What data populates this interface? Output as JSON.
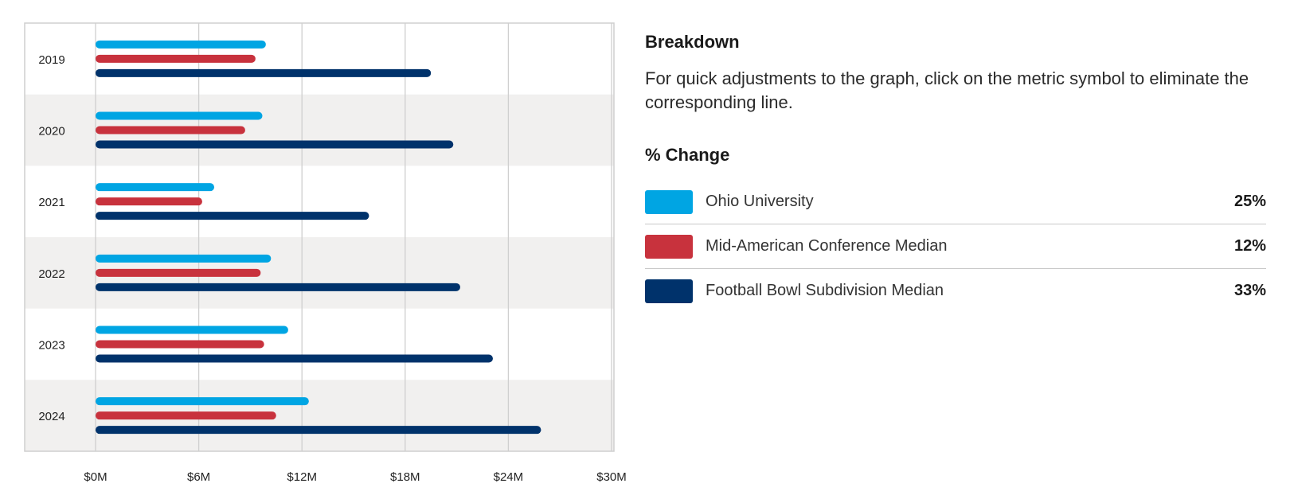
{
  "chart_data": {
    "type": "bar",
    "orientation": "horizontal",
    "categories": [
      "2019",
      "2020",
      "2021",
      "2022",
      "2023",
      "2024"
    ],
    "series": [
      {
        "name": "Ohio University",
        "color": "#00a5e3",
        "values": [
          9.9,
          9.7,
          6.9,
          10.2,
          11.2,
          12.4
        ]
      },
      {
        "name": "Mid-American Conference Median",
        "color": "#c8323d",
        "values": [
          9.3,
          8.7,
          6.2,
          9.6,
          9.8,
          10.5
        ]
      },
      {
        "name": "Football Bowl Subdivision Median",
        "color": "#00326b",
        "values": [
          19.5,
          20.8,
          15.9,
          21.2,
          23.1,
          25.9
        ]
      }
    ],
    "xlim": [
      0,
      30
    ],
    "xticks": [
      0,
      6,
      12,
      18,
      24,
      30
    ],
    "xtick_labels": [
      "$0M",
      "$6M",
      "$12M",
      "$18M",
      "$24M",
      "$30M"
    ],
    "grid": true
  },
  "panel": {
    "breakdown_title": "Breakdown",
    "description": "For quick adjustments to the graph, click on the metric symbol to eliminate the corresponding line.",
    "change_title": "% Change",
    "legend": [
      {
        "label": "Ohio University",
        "percent": "25%",
        "color": "#00a5e3"
      },
      {
        "label": "Mid-American Conference Median",
        "percent": "12%",
        "color": "#c8323d"
      },
      {
        "label": "Football Bowl Subdivision Median",
        "percent": "33%",
        "color": "#00326b"
      }
    ]
  }
}
